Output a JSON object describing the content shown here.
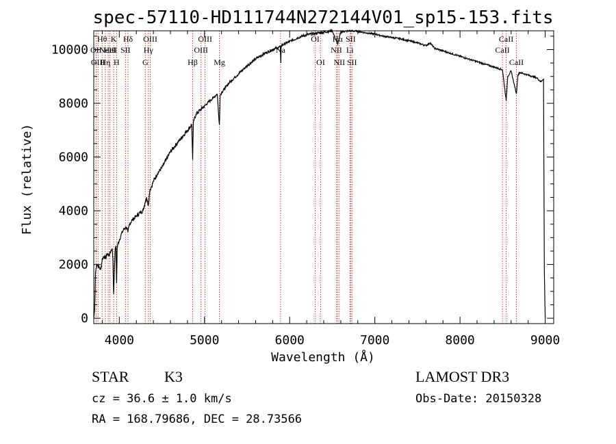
{
  "chart_data": {
    "type": "line",
    "title": "spec-57110-HD111744N272144V01_sp15-153.fits",
    "xlabel": "Wavelength (Å)",
    "ylabel": "Flux (relative)",
    "xlim": [
      3700,
      9100
    ],
    "ylim": [
      -200,
      10700
    ],
    "xticks": [
      4000,
      5000,
      6000,
      7000,
      8000,
      9000
    ],
    "yticks": [
      0,
      2000,
      4000,
      6000,
      8000,
      10000
    ],
    "series": [
      {
        "name": "flux",
        "x": [
          3700,
          3710,
          3720,
          3735,
          3750,
          3765,
          3780,
          3800,
          3820,
          3840,
          3860,
          3880,
          3900,
          3915,
          3925,
          3933,
          3940,
          3950,
          3960,
          3968,
          3975,
          3985,
          4000,
          4020,
          4050,
          4080,
          4101,
          4120,
          4150,
          4200,
          4250,
          4280,
          4300,
          4320,
          4340,
          4360,
          4380,
          4400,
          4450,
          4500,
          4550,
          4600,
          4650,
          4700,
          4750,
          4800,
          4850,
          4861,
          4870,
          4900,
          4950,
          5000,
          5050,
          5100,
          5150,
          5167,
          5175,
          5184,
          5200,
          5250,
          5300,
          5400,
          5500,
          5600,
          5700,
          5800,
          5890,
          5896,
          5900,
          6000,
          6100,
          6200,
          6300,
          6400,
          6500,
          6563,
          6600,
          6700,
          6800,
          6900,
          7000,
          7100,
          7200,
          7300,
          7400,
          7500,
          7600,
          7650,
          7700,
          7800,
          7900,
          8000,
          8100,
          8200,
          8300,
          8400,
          8498,
          8542,
          8560,
          8600,
          8662,
          8680,
          8700,
          8800,
          8900,
          8950,
          8980,
          8990,
          9000
        ],
        "values": [
          0,
          300,
          1700,
          2000,
          1950,
          1900,
          1800,
          2200,
          2300,
          2250,
          2400,
          2350,
          2500,
          2600,
          2200,
          900,
          1600,
          2500,
          2700,
          1300,
          2600,
          2800,
          2900,
          3100,
          3300,
          3400,
          3200,
          3500,
          3650,
          3800,
          3950,
          4000,
          4300,
          4500,
          4200,
          4800,
          4900,
          5100,
          5400,
          5600,
          5900,
          6200,
          6400,
          6600,
          6800,
          7000,
          7200,
          5900,
          7300,
          7600,
          7750,
          7900,
          8050,
          8200,
          8350,
          7500,
          7200,
          8300,
          8400,
          8600,
          8800,
          9100,
          9400,
          9650,
          9850,
          10000,
          10100,
          9500,
          10150,
          10300,
          10450,
          10550,
          10600,
          10650,
          10700,
          10200,
          10650,
          10700,
          10680,
          10620,
          10580,
          10500,
          10450,
          10400,
          10330,
          10250,
          10150,
          10250,
          10050,
          9950,
          9850,
          9750,
          9650,
          9550,
          9450,
          9350,
          9250,
          8100,
          9000,
          9200,
          8350,
          9050,
          9150,
          9050,
          8950,
          8800,
          8900,
          1800,
          0
        ]
      }
    ],
    "lines": [
      {
        "wl": 3727,
        "label": "OII",
        "row": 2
      },
      {
        "wl": 3750,
        "label": "OIII",
        "row": 3
      },
      {
        "wl": 3798,
        "label": "Hθ",
        "row": 1
      },
      {
        "wl": 3835,
        "label": "Hη",
        "row": 3
      },
      {
        "wl": 3869,
        "label": "NeIII",
        "row": 2
      },
      {
        "wl": 3889,
        "label": "HeI",
        "row": 2
      },
      {
        "wl": 3934,
        "label": "K",
        "row": 1
      },
      {
        "wl": 3968,
        "label": "H",
        "row": 3
      },
      {
        "wl": 4072,
        "label": "SII",
        "row": 2
      },
      {
        "wl": 4102,
        "label": "Hδ",
        "row": 1
      },
      {
        "wl": 4305,
        "label": "G",
        "row": 3
      },
      {
        "wl": 4341,
        "label": "Hγ",
        "row": 2
      },
      {
        "wl": 4363,
        "label": "OIII",
        "row": 1
      },
      {
        "wl": 4861,
        "label": "Hβ",
        "row": 3
      },
      {
        "wl": 4959,
        "label": "OIII",
        "row": 2
      },
      {
        "wl": 5007,
        "label": "OIII",
        "row": 1
      },
      {
        "wl": 5175,
        "label": "Mg",
        "row": 3
      },
      {
        "wl": 5893,
        "label": "Na",
        "row": 2
      },
      {
        "wl": 6300,
        "label": "OI",
        "row": 1
      },
      {
        "wl": 6364,
        "label": "OI",
        "row": 3
      },
      {
        "wl": 6548,
        "label": "NII",
        "row": 2
      },
      {
        "wl": 6563,
        "label": "Hα",
        "row": 1
      },
      {
        "wl": 6583,
        "label": "NII",
        "row": 3
      },
      {
        "wl": 6707,
        "label": "Li",
        "row": 2
      },
      {
        "wl": 6716,
        "label": "SII",
        "row": 1
      },
      {
        "wl": 6731,
        "label": "SII",
        "row": 3
      },
      {
        "wl": 8498,
        "label": "CaII",
        "row": 2
      },
      {
        "wl": 8542,
        "label": "CaII",
        "row": 1
      },
      {
        "wl": 8662,
        "label": "CaII",
        "row": 3
      }
    ]
  },
  "info": {
    "object_type": "STAR",
    "subclass": "K3",
    "survey": "LAMOST DR3",
    "redshift": "cz = 36.6 ± 1.0 km/s",
    "obs_date": "Obs-Date: 20150328",
    "coords": "RA = 168.79686, DEC =  28.73566"
  },
  "colors": {
    "line_marker": "#cc0000",
    "spectrum": "#000000",
    "axes": "#000000"
  }
}
